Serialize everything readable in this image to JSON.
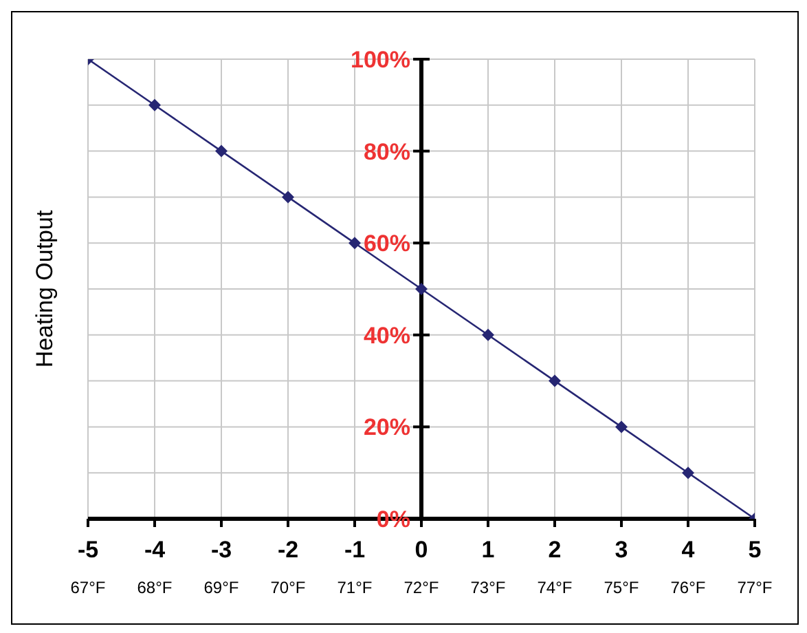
{
  "chart_data": {
    "type": "line",
    "ylabel": "Heating Output",
    "x": [
      -5,
      -4,
      -3,
      -2,
      -1,
      0,
      1,
      2,
      3,
      4,
      5
    ],
    "series": [
      {
        "color": "#262673",
        "values": [
          100,
          90,
          80,
          70,
          60,
          50,
          40,
          30,
          20,
          10,
          0
        ]
      }
    ],
    "xlim": [
      -5,
      5
    ],
    "xticks": [
      -5,
      -4,
      -3,
      -2,
      -1,
      0,
      1,
      2,
      3,
      4,
      5
    ],
    "x2lim": [
      67,
      77
    ],
    "x2ticks": [
      {
        "value": 67,
        "label": "67°F"
      },
      {
        "value": 68,
        "label": "68°F"
      },
      {
        "value": 69,
        "label": "69°F"
      },
      {
        "value": 70,
        "label": "70°F"
      },
      {
        "value": 71,
        "label": "71°F"
      },
      {
        "value": 72,
        "label": "72°F"
      },
      {
        "value": 73,
        "label": "73°F"
      },
      {
        "value": 74,
        "label": "74°F"
      },
      {
        "value": 75,
        "label": "75°F"
      },
      {
        "value": 76,
        "label": "76°F"
      },
      {
        "value": 77,
        "label": "77°F"
      }
    ],
    "ylim": [
      0,
      100
    ],
    "yticks": [
      {
        "value": 0,
        "label": "0%"
      },
      {
        "value": 10,
        "label": null
      },
      {
        "value": 20,
        "label": "20%"
      },
      {
        "value": 30,
        "label": null
      },
      {
        "value": 40,
        "label": "40%"
      },
      {
        "value": 50,
        "label": null
      },
      {
        "value": 60,
        "label": "60%"
      },
      {
        "value": 70,
        "label": null
      },
      {
        "value": 80,
        "label": "80%"
      },
      {
        "value": 90,
        "label": null
      },
      {
        "value": 100,
        "label": "100%"
      }
    ],
    "grid": true,
    "marker": "diamond",
    "line_style": "solid"
  }
}
